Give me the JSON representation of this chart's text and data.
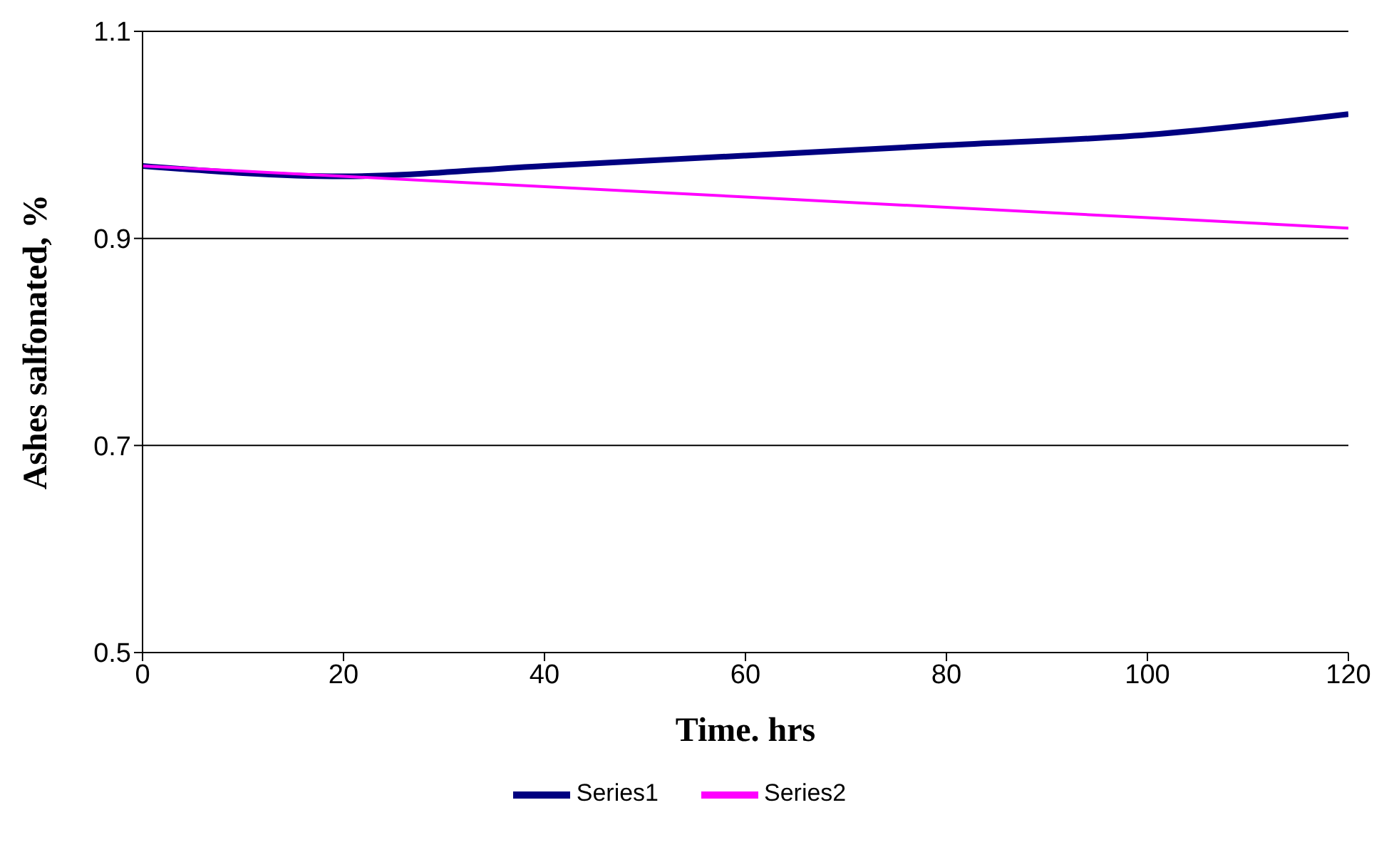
{
  "chart_data": {
    "type": "line",
    "xlabel": "Time. hrs",
    "ylabel": "Ashes salfonated, %",
    "x": [
      0,
      20,
      40,
      60,
      80,
      100,
      120
    ],
    "series": [
      {
        "name": "Series1",
        "color": "#000080",
        "values": [
          0.97,
          0.96,
          0.97,
          0.98,
          0.99,
          1.0,
          1.02
        ]
      },
      {
        "name": "Series2",
        "color": "#ff00ff",
        "values": [
          0.97,
          0.96,
          0.95,
          0.94,
          0.93,
          0.92,
          0.91
        ]
      }
    ],
    "xlim": [
      0,
      120
    ],
    "xticks": [
      0,
      20,
      40,
      60,
      80,
      100,
      120
    ],
    "ylim": [
      0.5,
      1.1
    ],
    "yticks": [
      0.5,
      0.7,
      0.9,
      1.1
    ],
    "grid": "y",
    "legend": "bottom",
    "marker": "none",
    "line_style": "solid"
  }
}
